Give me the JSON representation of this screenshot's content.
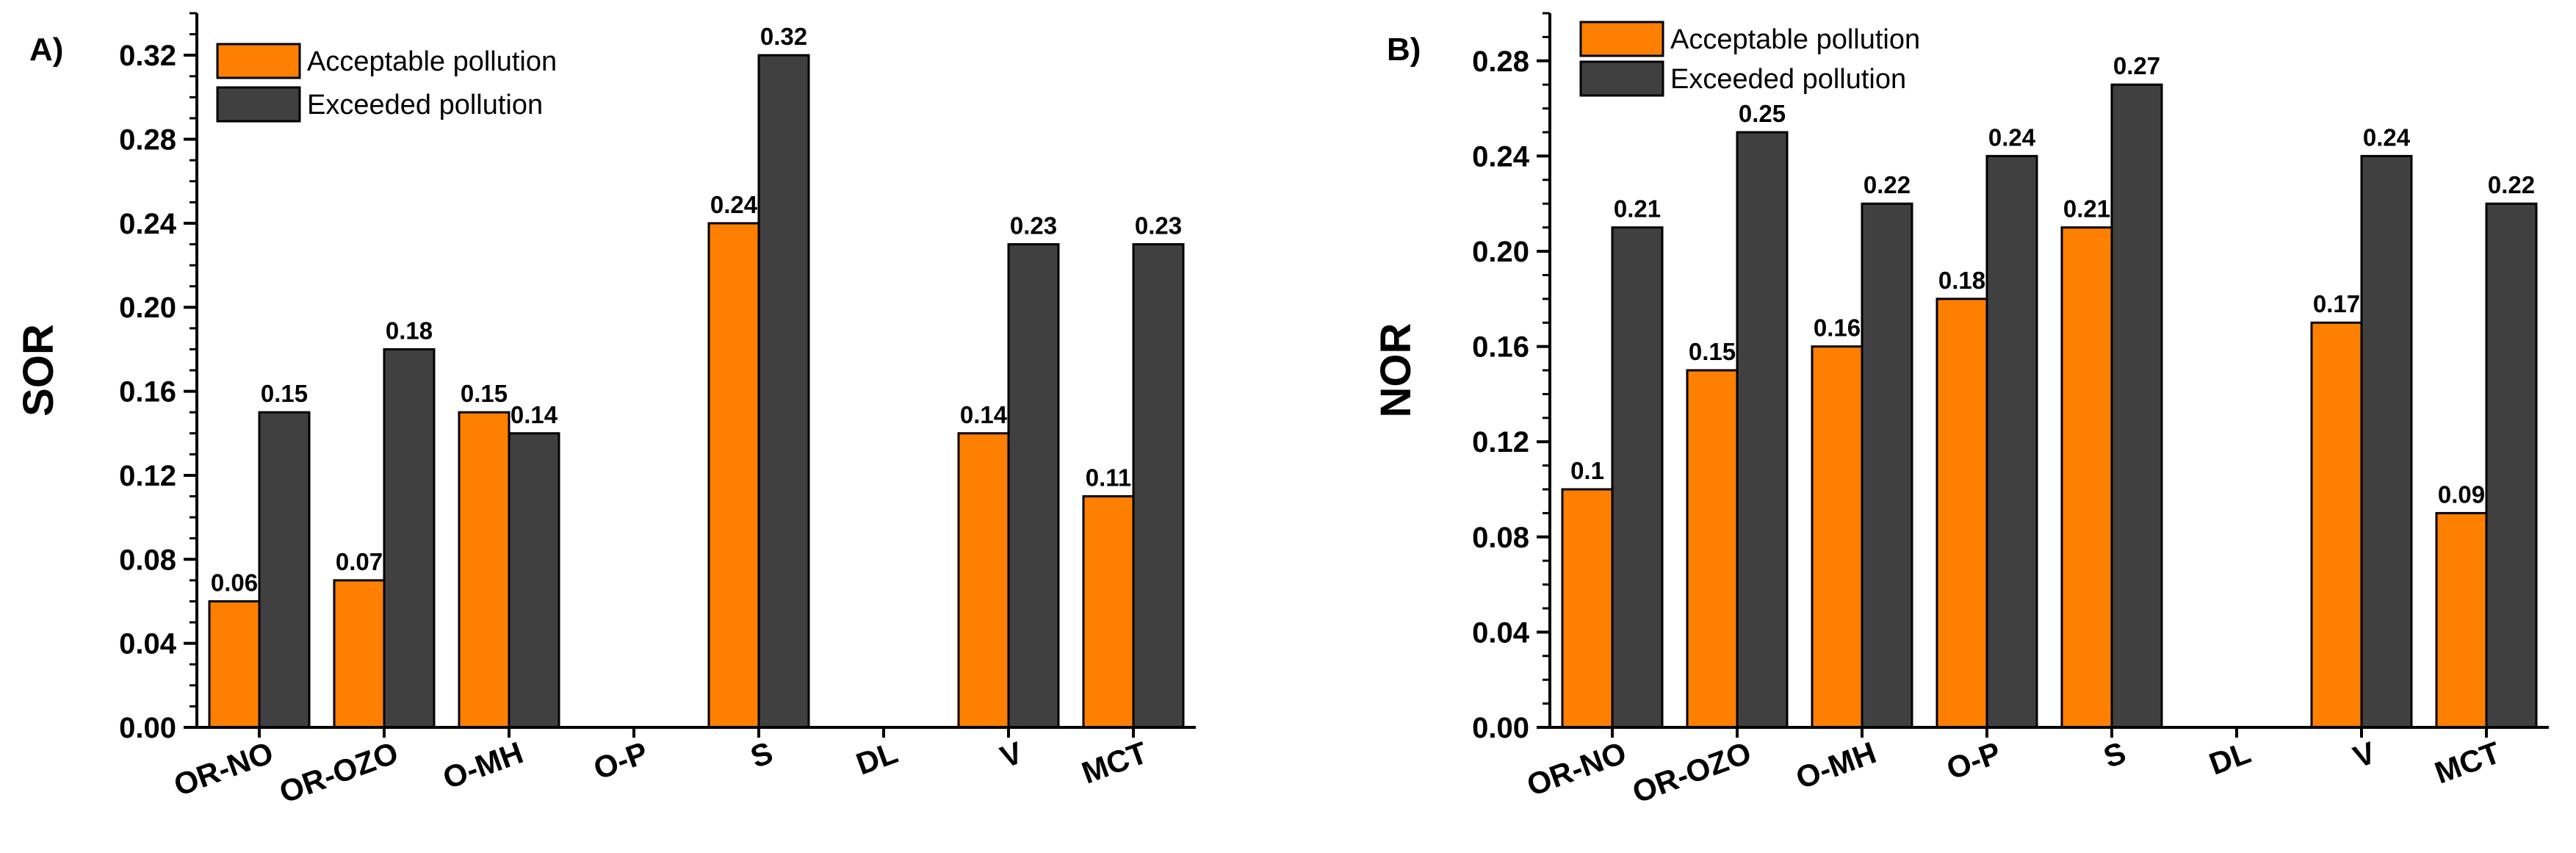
{
  "colors": {
    "acceptable": "#FF8000",
    "exceeded": "#404040",
    "axis": "#000000",
    "background": "#FFFFFF"
  },
  "chart_data": [
    {
      "panel": "A)",
      "type": "bar",
      "ylabel": "SOR",
      "xlabel": "",
      "ylim": [
        0,
        0.34
      ],
      "yticks": [
        "0.00",
        "0.04",
        "0.08",
        "0.12",
        "0.16",
        "0.20",
        "0.24",
        "0.28",
        "0.32"
      ],
      "categories": [
        "OR-NO",
        "OR-OZO",
        "O-MH",
        "O-P",
        "S",
        "DL",
        "V",
        "MCT"
      ],
      "legend_position": "top-left",
      "series": [
        {
          "name": "Acceptable pollution",
          "color_key": "acceptable",
          "values": [
            0.06,
            0.07,
            0.15,
            null,
            0.24,
            null,
            0.14,
            0.11
          ],
          "labels": [
            "0.06",
            "0.07",
            "0.15",
            "",
            "0.24",
            "",
            "0.14",
            "0.11"
          ]
        },
        {
          "name": "Exceeded pollution",
          "color_key": "exceeded",
          "values": [
            0.15,
            0.18,
            0.14,
            null,
            0.32,
            null,
            0.23,
            0.23
          ],
          "labels": [
            "0.15",
            "0.18",
            "0.14",
            "",
            "0.32",
            "",
            "0.23",
            "0.23"
          ]
        }
      ]
    },
    {
      "panel": "B)",
      "type": "bar",
      "ylabel": "NOR",
      "xlabel": "",
      "ylim": [
        0,
        0.3
      ],
      "yticks": [
        "0.00",
        "0.04",
        "0.08",
        "0.12",
        "0.16",
        "0.20",
        "0.24",
        "0.28"
      ],
      "categories": [
        "OR-NO",
        "OR-OZO",
        "O-MH",
        "O-P",
        "S",
        "DL",
        "V",
        "MCT"
      ],
      "legend_position": "top-left",
      "series": [
        {
          "name": "Acceptable pollution",
          "color_key": "acceptable",
          "values": [
            0.1,
            0.15,
            0.16,
            0.18,
            0.21,
            null,
            0.17,
            0.09
          ],
          "labels": [
            "0.1",
            "0.15",
            "0.16",
            "0.18",
            "0.21",
            "",
            "0.17",
            "0.09"
          ]
        },
        {
          "name": "Exceeded pollution",
          "color_key": "exceeded",
          "values": [
            0.21,
            0.25,
            0.22,
            0.24,
            0.27,
            null,
            0.24,
            0.22
          ],
          "labels": [
            "0.21",
            "0.25",
            "0.22",
            "0.24",
            "0.27",
            "",
            "0.24",
            "0.22"
          ]
        }
      ]
    }
  ]
}
